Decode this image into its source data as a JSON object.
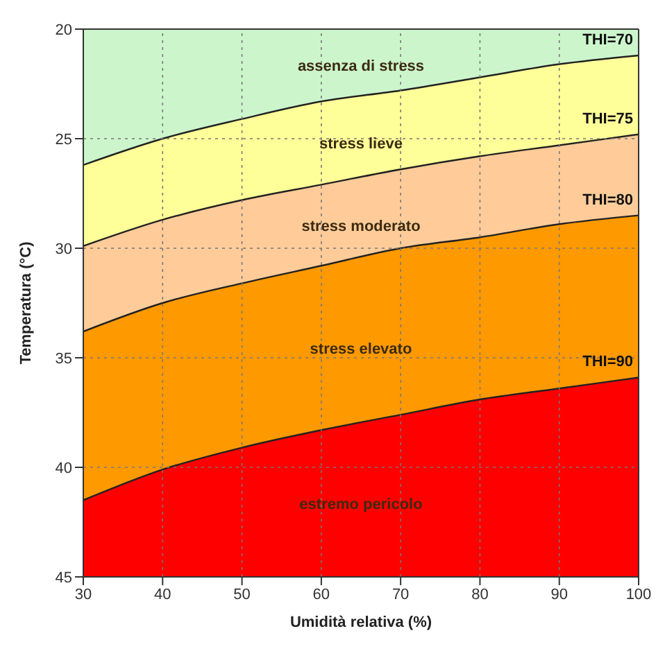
{
  "chart_data": {
    "type": "area",
    "xlabel": "Umidità relativa (%)",
    "ylabel": "Temperatura (°C)",
    "x": [
      30,
      40,
      50,
      60,
      70,
      80,
      90,
      100
    ],
    "series": [
      {
        "color": "#ff0000",
        "values": [
          45,
          45,
          45,
          45,
          45,
          45,
          45,
          45
        ]
      },
      {
        "name": "THI=90",
        "color": "#ff9900",
        "values": [
          41.5,
          40.1,
          39.1,
          38.3,
          37.6,
          36.9,
          36.4,
          35.9
        ]
      },
      {
        "name": "THI=80",
        "color": "#ffcc99",
        "values": [
          33.8,
          32.5,
          31.6,
          30.8,
          30.0,
          29.5,
          28.9,
          28.5
        ]
      },
      {
        "name": "THI=75",
        "color": "#ffff99",
        "values": [
          29.9,
          28.7,
          27.8,
          27.1,
          26.4,
          25.8,
          25.3,
          24.8
        ]
      },
      {
        "name": "THI=70",
        "color": "#ccf5cc",
        "values": [
          26.2,
          25.0,
          24.1,
          23.3,
          22.8,
          22.2,
          21.6,
          21.2
        ]
      }
    ],
    "annotations": [
      "assenza di stress",
      "stress lieve",
      "stress moderato",
      "stress elevato",
      "estremo pericolo"
    ],
    "xlim": [
      30,
      100
    ],
    "xticks": [
      30,
      40,
      50,
      60,
      70,
      80,
      90,
      100
    ],
    "ylim": [
      45,
      20
    ],
    "yticks": [
      20,
      25,
      30,
      35,
      40,
      45
    ],
    "grid": true
  }
}
